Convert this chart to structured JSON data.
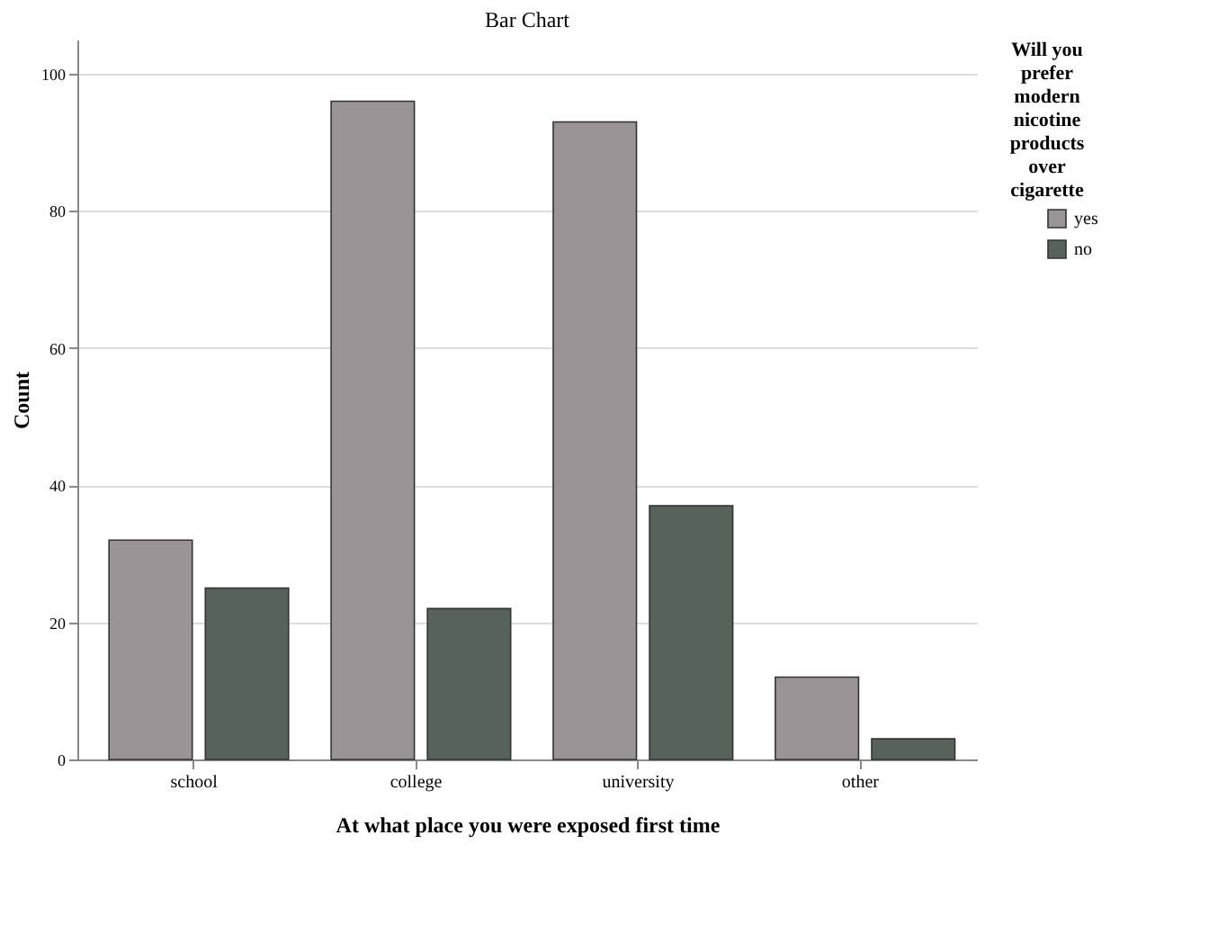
{
  "chart_data": {
    "type": "bar",
    "title": "Bar Chart",
    "xlabel": "At what place you were exposed first time",
    "ylabel": "Count",
    "legend_title": "Will you prefer modern nicotine products over cigarette",
    "categories": [
      "school",
      "college",
      "university",
      "other"
    ],
    "series": [
      {
        "name": "yes",
        "color": "#9a9496",
        "values": [
          32,
          96,
          93,
          12
        ]
      },
      {
        "name": "no",
        "color": "#56625a",
        "values": [
          25,
          22,
          37,
          3
        ]
      }
    ],
    "ylim": [
      0,
      105
    ],
    "yticks": [
      0,
      20,
      40,
      60,
      80,
      100
    ],
    "grid": "y",
    "legend": "top right"
  }
}
